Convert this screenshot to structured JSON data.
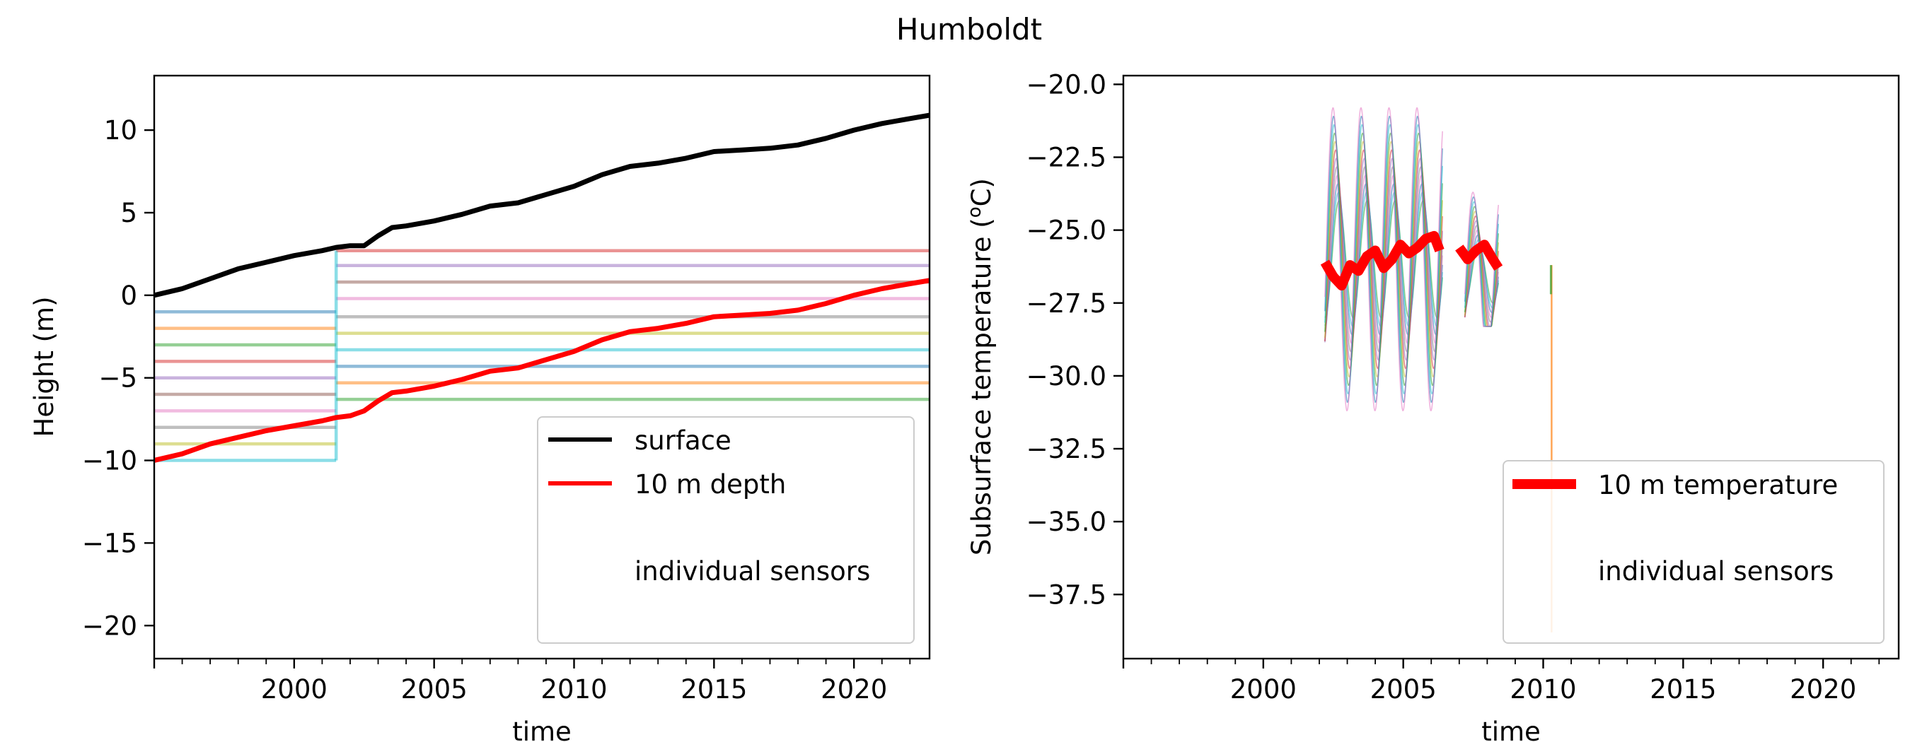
{
  "figure": {
    "title": "Humboldt"
  },
  "colors": {
    "surface": "#000000",
    "depth": "#ff0000",
    "sensors": [
      "#1f77b4",
      "#ff7f0e",
      "#2ca02c",
      "#d62728",
      "#9467bd",
      "#8c564b",
      "#e377c2",
      "#7f7f7f",
      "#bcbd22",
      "#17becf"
    ]
  },
  "chart_data": [
    {
      "type": "line",
      "title": "",
      "xlabel": "time",
      "ylabel": "Height (m)",
      "xlim": [
        1995.0,
        2022.7
      ],
      "ylim": [
        -22,
        13.3
      ],
      "x_major_ticks": [
        2000,
        2005,
        2010,
        2015,
        2020
      ],
      "x_tick_labels": [
        "2000",
        "2005",
        "2010",
        "2015",
        "2020"
      ],
      "y_ticks": [
        10,
        5,
        0,
        -5,
        -10,
        -15,
        -20
      ],
      "y_tick_labels": [
        "10",
        "5",
        "0",
        "−5",
        "−10",
        "−15",
        "−20"
      ],
      "legend": {
        "position": "lower-right",
        "entries": [
          "surface",
          "10 m depth",
          "individual sensors"
        ]
      },
      "series": [
        {
          "name": "surface",
          "x": [
            1995.0,
            1996.0,
            1997.0,
            1998.0,
            1999.0,
            2000.0,
            2001.0,
            2001.5,
            2002.0,
            2002.5,
            2003.0,
            2003.5,
            2004.0,
            2005.0,
            2006.0,
            2007.0,
            2008.0,
            2009.0,
            2010.0,
            2011.0,
            2012.0,
            2013.0,
            2014.0,
            2015.0,
            2016.0,
            2017.0,
            2018.0,
            2019.0,
            2020.0,
            2021.0,
            2022.0,
            2022.7
          ],
          "y": [
            0.0,
            0.4,
            1.0,
            1.6,
            2.0,
            2.4,
            2.7,
            2.9,
            3.0,
            3.0,
            3.6,
            4.1,
            4.2,
            4.5,
            4.9,
            5.4,
            5.6,
            6.1,
            6.6,
            7.3,
            7.8,
            8.0,
            8.3,
            8.7,
            8.8,
            8.9,
            9.1,
            9.5,
            10.0,
            10.4,
            10.7,
            10.9
          ]
        },
        {
          "name": "10 m depth",
          "x": [
            1995.0,
            1996.0,
            1997.0,
            1998.0,
            1999.0,
            2000.0,
            2001.0,
            2001.5,
            2002.0,
            2002.5,
            2003.0,
            2003.5,
            2004.0,
            2005.0,
            2006.0,
            2007.0,
            2008.0,
            2009.0,
            2010.0,
            2011.0,
            2012.0,
            2013.0,
            2014.0,
            2015.0,
            2016.0,
            2017.0,
            2018.0,
            2019.0,
            2020.0,
            2021.0,
            2022.0,
            2022.7
          ],
          "y": [
            -10.0,
            -9.6,
            -9.0,
            -8.6,
            -8.2,
            -7.9,
            -7.6,
            -7.4,
            -7.3,
            -7.0,
            -6.4,
            -5.9,
            -5.8,
            -5.5,
            -5.1,
            -4.6,
            -4.4,
            -3.9,
            -3.4,
            -2.7,
            -2.2,
            -2.0,
            -1.7,
            -1.3,
            -1.2,
            -1.1,
            -0.9,
            -0.5,
            0.0,
            0.4,
            0.7,
            0.9
          ]
        }
      ],
      "sensor_levels": [
        {
          "x0": 1995.0,
          "x1": 2001.5,
          "depths": [
            -1,
            -2,
            -3,
            -4,
            -5,
            -6,
            -7,
            -8,
            -9,
            -10
          ]
        },
        {
          "x0": 2001.5,
          "x1": 2022.7,
          "depths": [
            2.7,
            1.8,
            0.8,
            -0.2,
            -1.3,
            -2.3,
            -3.3,
            -4.3,
            -5.3,
            -6.3
          ]
        }
      ]
    },
    {
      "type": "line",
      "title": "",
      "xlabel": "time",
      "ylabel": "Subsurface temperature (°C)",
      "ylabel_prefix": "Subsurface temperature (",
      "ylabel_sup": "o",
      "ylabel_suffix": "C)",
      "xlim": [
        1995.0,
        2022.7
      ],
      "ylim": [
        -39.7,
        -19.7
      ],
      "x_major_ticks": [
        2000,
        2005,
        2010,
        2015,
        2020
      ],
      "x_tick_labels": [
        "2000",
        "2005",
        "2010",
        "2015",
        "2020"
      ],
      "y_ticks": [
        -20.0,
        -22.5,
        -25.0,
        -27.5,
        -30.0,
        -32.5,
        -35.0,
        -37.5
      ],
      "y_tick_labels": [
        "−20.0",
        "−22.5",
        "−25.0",
        "−27.5",
        "−30.0",
        "−32.5",
        "−35.0",
        "−37.5"
      ],
      "legend": {
        "position": "lower-right",
        "entries": [
          "10 m temperature",
          "individual sensors"
        ]
      },
      "series": [
        {
          "name": "10 m temperature",
          "segments": [
            {
              "x": [
                2002.2,
                2002.5,
                2002.8,
                2003.1,
                2003.4,
                2003.7,
                2004.0,
                2004.3,
                2004.6,
                2004.9,
                2005.2,
                2005.5,
                2005.8,
                2006.1,
                2006.3
              ],
              "y": [
                -26.1,
                -26.6,
                -26.9,
                -26.2,
                -26.4,
                -25.9,
                -25.7,
                -26.3,
                -26.0,
                -25.5,
                -25.8,
                -25.6,
                -25.3,
                -25.2,
                -25.7
              ]
            },
            {
              "x": [
                2007.0,
                2007.3,
                2007.6,
                2007.9,
                2008.2,
                2008.4
              ],
              "y": [
                -25.6,
                -26.0,
                -25.7,
                -25.5,
                -26.0,
                -26.3
              ]
            }
          ]
        }
      ],
      "sensor_oscillation": {
        "segments": [
          {
            "x0": 2002.2,
            "x1": 2006.4,
            "center": -26.0,
            "amplitude_deep": 2.0,
            "amplitude_shallow": 5.2,
            "floor": -32.2
          },
          {
            "x0": 2007.2,
            "x1": 2008.4,
            "center": -26.5,
            "amplitude_deep": 1.0,
            "amplitude_shallow": 2.8,
            "floor": -28.3
          }
        ],
        "spike": {
          "x": 2010.3,
          "top": -26.2,
          "bottom": -38.8
        }
      }
    }
  ]
}
